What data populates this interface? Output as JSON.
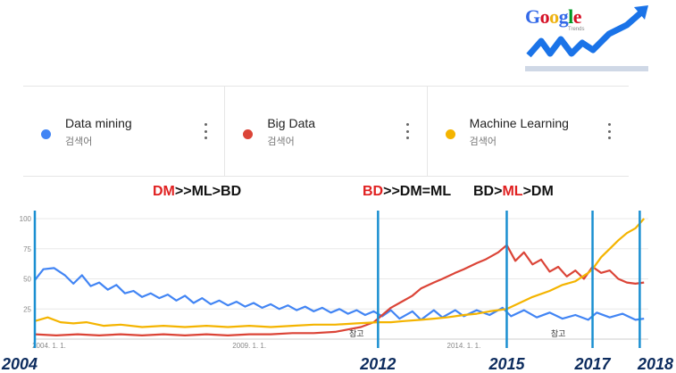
{
  "logo": {
    "word": [
      "G",
      "o",
      "o",
      "g",
      "l",
      "e"
    ],
    "sub": "Trends"
  },
  "terms": [
    {
      "label": "Data mining",
      "sub": "검색어",
      "color": "#4285f4"
    },
    {
      "label": "Big Data",
      "sub": "검색어",
      "color": "#db4437"
    },
    {
      "label": "Machine Learning",
      "sub": "검색어",
      "color": "#f4b400"
    }
  ],
  "annotations": [
    {
      "parts": [
        {
          "text": "DM",
          "red": true
        },
        {
          "text": ">>ML>BD",
          "red": false
        }
      ]
    },
    {
      "parts": [
        {
          "text": "BD",
          "red": true
        },
        {
          "text": ">>DM=ML",
          "red": false
        }
      ]
    },
    {
      "parts": [
        {
          "text": "BD>",
          "red": false
        },
        {
          "text": "ML",
          "red": true
        },
        {
          "text": ">DM",
          "red": false
        }
      ]
    }
  ],
  "chart_data": {
    "type": "line",
    "y_ticks": [
      "100",
      "75",
      "50",
      "25"
    ],
    "y_tick_values": [
      100,
      75,
      50,
      25
    ],
    "ylim": [
      0,
      100
    ],
    "xlim": [
      2004,
      2018.3
    ],
    "x_tick_labels": [
      {
        "x": 2004,
        "label": "2004. 1. 1."
      },
      {
        "x": 2009,
        "label": "2009. 1. 1."
      },
      {
        "x": 2014,
        "label": "2014. 1. 1."
      }
    ],
    "notes": [
      {
        "x": 2011.5,
        "label": "참고"
      },
      {
        "x": 2016.2,
        "label": "참고"
      }
    ],
    "markers": [
      {
        "x": 2004,
        "label": "2004"
      },
      {
        "x": 2012,
        "label": "2012"
      },
      {
        "x": 2015,
        "label": "2015"
      },
      {
        "x": 2017,
        "label": "2017"
      },
      {
        "x": 2018.1,
        "label": "2018"
      }
    ],
    "grid": true,
    "series": [
      {
        "name": "Data mining",
        "color": "#4285f4",
        "points": [
          [
            2004,
            49
          ],
          [
            2004.2,
            58
          ],
          [
            2004.45,
            59
          ],
          [
            2004.7,
            53
          ],
          [
            2004.9,
            46
          ],
          [
            2005.1,
            53
          ],
          [
            2005.3,
            44
          ],
          [
            2005.5,
            47
          ],
          [
            2005.7,
            41
          ],
          [
            2005.9,
            45
          ],
          [
            2006.1,
            38
          ],
          [
            2006.3,
            40
          ],
          [
            2006.5,
            35
          ],
          [
            2006.7,
            38
          ],
          [
            2006.9,
            34
          ],
          [
            2007.1,
            37
          ],
          [
            2007.3,
            32
          ],
          [
            2007.5,
            36
          ],
          [
            2007.7,
            30
          ],
          [
            2007.9,
            34
          ],
          [
            2008.1,
            29
          ],
          [
            2008.3,
            32
          ],
          [
            2008.5,
            28
          ],
          [
            2008.7,
            31
          ],
          [
            2008.9,
            27
          ],
          [
            2009.1,
            30
          ],
          [
            2009.3,
            26
          ],
          [
            2009.5,
            29
          ],
          [
            2009.7,
            25
          ],
          [
            2009.9,
            28
          ],
          [
            2010.1,
            24
          ],
          [
            2010.3,
            27
          ],
          [
            2010.5,
            23
          ],
          [
            2010.7,
            26
          ],
          [
            2010.9,
            22
          ],
          [
            2011.1,
            25
          ],
          [
            2011.3,
            21
          ],
          [
            2011.5,
            24
          ],
          [
            2011.7,
            20
          ],
          [
            2011.9,
            23
          ],
          [
            2012.1,
            19
          ],
          [
            2012.3,
            24
          ],
          [
            2012.5,
            17
          ],
          [
            2012.8,
            23
          ],
          [
            2013.0,
            16
          ],
          [
            2013.3,
            24
          ],
          [
            2013.5,
            18
          ],
          [
            2013.8,
            24
          ],
          [
            2014.0,
            19
          ],
          [
            2014.3,
            24
          ],
          [
            2014.6,
            20
          ],
          [
            2014.9,
            26
          ],
          [
            2015.1,
            19
          ],
          [
            2015.4,
            24
          ],
          [
            2015.7,
            18
          ],
          [
            2016.0,
            22
          ],
          [
            2016.3,
            17
          ],
          [
            2016.6,
            20
          ],
          [
            2016.9,
            16
          ],
          [
            2017.1,
            22
          ],
          [
            2017.4,
            18
          ],
          [
            2017.7,
            21
          ],
          [
            2018.0,
            16
          ],
          [
            2018.2,
            17
          ]
        ]
      },
      {
        "name": "Big Data",
        "color": "#db4437",
        "points": [
          [
            2004,
            4
          ],
          [
            2004.5,
            3
          ],
          [
            2005,
            4
          ],
          [
            2005.5,
            3
          ],
          [
            2006,
            4
          ],
          [
            2006.5,
            3
          ],
          [
            2007,
            4
          ],
          [
            2007.5,
            3
          ],
          [
            2008,
            4
          ],
          [
            2008.5,
            3
          ],
          [
            2009,
            4
          ],
          [
            2009.5,
            4
          ],
          [
            2010,
            5
          ],
          [
            2010.5,
            5
          ],
          [
            2011,
            6
          ],
          [
            2011.3,
            8
          ],
          [
            2011.6,
            10
          ],
          [
            2011.9,
            14
          ],
          [
            2012.1,
            20
          ],
          [
            2012.3,
            26
          ],
          [
            2012.5,
            30
          ],
          [
            2012.8,
            36
          ],
          [
            2013.0,
            42
          ],
          [
            2013.3,
            47
          ],
          [
            2013.5,
            50
          ],
          [
            2013.8,
            55
          ],
          [
            2014.0,
            58
          ],
          [
            2014.3,
            63
          ],
          [
            2014.5,
            66
          ],
          [
            2014.8,
            72
          ],
          [
            2015.0,
            78
          ],
          [
            2015.2,
            65
          ],
          [
            2015.4,
            72
          ],
          [
            2015.6,
            62
          ],
          [
            2015.8,
            66
          ],
          [
            2016.0,
            56
          ],
          [
            2016.2,
            60
          ],
          [
            2016.4,
            52
          ],
          [
            2016.6,
            57
          ],
          [
            2016.8,
            50
          ],
          [
            2017.0,
            60
          ],
          [
            2017.2,
            55
          ],
          [
            2017.4,
            57
          ],
          [
            2017.6,
            50
          ],
          [
            2017.8,
            47
          ],
          [
            2018.0,
            46
          ],
          [
            2018.2,
            47
          ]
        ]
      },
      {
        "name": "Machine Learning",
        "color": "#f4b400",
        "points": [
          [
            2004,
            15
          ],
          [
            2004.3,
            18
          ],
          [
            2004.6,
            14
          ],
          [
            2004.9,
            13
          ],
          [
            2005.2,
            14
          ],
          [
            2005.6,
            11
          ],
          [
            2006.0,
            12
          ],
          [
            2006.5,
            10
          ],
          [
            2007.0,
            11
          ],
          [
            2007.5,
            10
          ],
          [
            2008.0,
            11
          ],
          [
            2008.5,
            10
          ],
          [
            2009.0,
            11
          ],
          [
            2009.5,
            10
          ],
          [
            2010.0,
            11
          ],
          [
            2010.5,
            12
          ],
          [
            2011.0,
            12
          ],
          [
            2011.5,
            13
          ],
          [
            2012.0,
            14
          ],
          [
            2012.3,
            14
          ],
          [
            2012.6,
            15
          ],
          [
            2013.0,
            16
          ],
          [
            2013.3,
            17
          ],
          [
            2013.6,
            18
          ],
          [
            2014.0,
            20
          ],
          [
            2014.3,
            21
          ],
          [
            2014.6,
            23
          ],
          [
            2015.0,
            25
          ],
          [
            2015.3,
            30
          ],
          [
            2015.6,
            35
          ],
          [
            2016.0,
            40
          ],
          [
            2016.3,
            45
          ],
          [
            2016.6,
            48
          ],
          [
            2016.9,
            55
          ],
          [
            2017.0,
            58
          ],
          [
            2017.2,
            68
          ],
          [
            2017.4,
            75
          ],
          [
            2017.6,
            82
          ],
          [
            2017.8,
            88
          ],
          [
            2018.0,
            92
          ],
          [
            2018.2,
            100
          ]
        ]
      }
    ]
  }
}
